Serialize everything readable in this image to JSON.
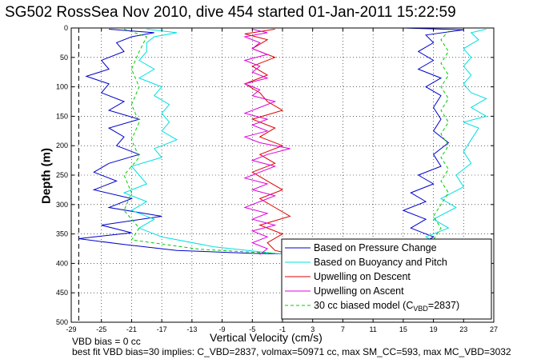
{
  "title": "SG502 RossSea Nov 2010, dive 454 started 01-Jan-2011 15:22:59",
  "chart_data": {
    "type": "line",
    "xlabel": "Vertical Velocity (cm/s)",
    "ylabel": "Depth (m)",
    "xlim": [
      -29,
      27
    ],
    "ylim": [
      0,
      500
    ],
    "y_reversed": true,
    "grid": true,
    "xticks": [
      -29,
      -25,
      -21,
      -17,
      -13,
      -9,
      -5,
      -1,
      3,
      7,
      11,
      15,
      19,
      23,
      27
    ],
    "yticks": [
      0,
      50,
      100,
      150,
      200,
      250,
      300,
      350,
      400,
      450,
      500
    ],
    "legend_location": "bottom-right",
    "vbd_bias_line_x": -28,
    "series": [
      {
        "name": "Based on Pressure Change",
        "color": "#0000cc",
        "descent": [
          [
            -24,
            2
          ],
          [
            -18,
            8
          ],
          [
            -21,
            15
          ],
          [
            -23,
            25
          ],
          [
            -22,
            40
          ],
          [
            -25,
            55
          ],
          [
            -24,
            70
          ],
          [
            -27,
            82
          ],
          [
            -24,
            95
          ],
          [
            -25,
            110
          ],
          [
            -22,
            125
          ],
          [
            -24,
            140
          ],
          [
            -20,
            155
          ],
          [
            -24,
            170
          ],
          [
            -22,
            185
          ],
          [
            -23,
            200
          ],
          [
            -20,
            215
          ],
          [
            -24,
            230
          ],
          [
            -26,
            245
          ],
          [
            -23,
            260
          ],
          [
            -26,
            275
          ],
          [
            -21,
            290
          ],
          [
            -24,
            305
          ],
          [
            -17,
            320
          ],
          [
            -25,
            335
          ],
          [
            -21,
            348
          ],
          [
            -28,
            358
          ],
          [
            -22,
            368
          ],
          [
            -15,
            378
          ],
          [
            -5,
            383
          ],
          [
            0,
            384
          ]
        ],
        "ascent": [
          [
            0,
            385
          ],
          [
            10,
            384
          ],
          [
            18,
            380
          ],
          [
            17,
            370
          ],
          [
            19,
            355
          ],
          [
            16,
            340
          ],
          [
            18,
            325
          ],
          [
            15,
            310
          ],
          [
            18,
            295
          ],
          [
            16,
            280
          ],
          [
            19,
            265
          ],
          [
            17,
            250
          ],
          [
            20,
            235
          ],
          [
            19,
            215
          ],
          [
            21,
            195
          ],
          [
            19,
            175
          ],
          [
            20,
            155
          ],
          [
            19,
            135
          ],
          [
            20,
            115
          ],
          [
            18,
            100
          ],
          [
            20,
            85
          ],
          [
            17,
            70
          ],
          [
            19,
            55
          ],
          [
            17,
            40
          ],
          [
            19,
            25
          ],
          [
            18,
            12
          ],
          [
            23,
            3
          ],
          [
            15,
            0
          ]
        ]
      },
      {
        "name": "Based on Buoyancy and Pitch",
        "color": "#00e0e0",
        "descent": [
          [
            -19,
            2
          ],
          [
            -15,
            8
          ],
          [
            -18,
            15
          ],
          [
            -19,
            25
          ],
          [
            -19,
            40
          ],
          [
            -20,
            55
          ],
          [
            -18,
            70
          ],
          [
            -20,
            85
          ],
          [
            -17,
            100
          ],
          [
            -18,
            115
          ],
          [
            -16,
            130
          ],
          [
            -17,
            145
          ],
          [
            -16,
            160
          ],
          [
            -17,
            175
          ],
          [
            -15,
            190
          ],
          [
            -18,
            205
          ],
          [
            -17,
            220
          ],
          [
            -21,
            235
          ],
          [
            -20,
            250
          ],
          [
            -19,
            265
          ],
          [
            -22,
            280
          ],
          [
            -19,
            295
          ],
          [
            -21,
            310
          ],
          [
            -18,
            325
          ],
          [
            -20,
            340
          ],
          [
            -17,
            355
          ],
          [
            -10,
            372
          ],
          [
            -2,
            383
          ],
          [
            0,
            385
          ]
        ],
        "ascent": [
          [
            0,
            385
          ],
          [
            12,
            384
          ],
          [
            19,
            380
          ],
          [
            20,
            370
          ],
          [
            18,
            355
          ],
          [
            21,
            340
          ],
          [
            19,
            325
          ],
          [
            22,
            305
          ],
          [
            20,
            290
          ],
          [
            23,
            270
          ],
          [
            22,
            250
          ],
          [
            24,
            230
          ],
          [
            23,
            210
          ],
          [
            24,
            190
          ],
          [
            25,
            170
          ],
          [
            23,
            160
          ],
          [
            26,
            150
          ],
          [
            24,
            135
          ],
          [
            26,
            120
          ],
          [
            24,
            110
          ],
          [
            23,
            95
          ],
          [
            24,
            80
          ],
          [
            23,
            65
          ],
          [
            24,
            50
          ],
          [
            23,
            35
          ],
          [
            25,
            20
          ],
          [
            24,
            8
          ],
          [
            26,
            2
          ]
        ]
      },
      {
        "name": "Upwelling on Descent",
        "color": "#e00000",
        "descent": [
          [
            -2,
            2
          ],
          [
            -6,
            10
          ],
          [
            -3,
            20
          ],
          [
            -5,
            35
          ],
          [
            -2,
            50
          ],
          [
            -5,
            65
          ],
          [
            -3,
            80
          ],
          [
            -6,
            95
          ],
          [
            -4,
            110
          ],
          [
            -3,
            125
          ],
          [
            -1,
            140
          ],
          [
            -5,
            155
          ],
          [
            -2,
            170
          ],
          [
            -4,
            185
          ],
          [
            -1,
            200
          ],
          [
            -4,
            215
          ],
          [
            -2,
            230
          ],
          [
            -5,
            245
          ],
          [
            -3,
            260
          ],
          [
            -1,
            275
          ],
          [
            -4,
            290
          ],
          [
            -2,
            305
          ],
          [
            0,
            320
          ],
          [
            -4,
            335
          ],
          [
            -1,
            350
          ],
          [
            -3,
            365
          ],
          [
            -2,
            378
          ],
          [
            0,
            384
          ],
          [
            14,
            384
          ]
        ]
      },
      {
        "name": "Upwelling on Ascent",
        "color": "#e000e0",
        "ascent": [
          [
            -4,
            385
          ],
          [
            -3,
            375
          ],
          [
            -5,
            365
          ],
          [
            -3,
            355
          ],
          [
            -5,
            345
          ],
          [
            -2,
            335
          ],
          [
            -5,
            325
          ],
          [
            -3,
            315
          ],
          [
            -6,
            305
          ],
          [
            -4,
            295
          ],
          [
            -2,
            285
          ],
          [
            -5,
            275
          ],
          [
            -3,
            265
          ],
          [
            -6,
            255
          ],
          [
            -4,
            245
          ],
          [
            -2,
            235
          ],
          [
            -5,
            225
          ],
          [
            -3,
            215
          ],
          [
            0,
            205
          ],
          [
            -4,
            195
          ],
          [
            -6,
            185
          ],
          [
            -3,
            175
          ],
          [
            -5,
            165
          ],
          [
            -3,
            155
          ],
          [
            -6,
            145
          ],
          [
            -4,
            135
          ],
          [
            -2,
            125
          ],
          [
            -5,
            115
          ],
          [
            -4,
            105
          ],
          [
            -6,
            95
          ],
          [
            -3,
            85
          ],
          [
            -5,
            75
          ],
          [
            -4,
            65
          ],
          [
            -6,
            55
          ],
          [
            -3,
            45
          ],
          [
            -5,
            35
          ],
          [
            -4,
            25
          ],
          [
            -6,
            15
          ],
          [
            -3,
            8
          ],
          [
            -5,
            2
          ]
        ]
      },
      {
        "name": "30 cc biased model (C_VBD=2837)",
        "color": "#00cc00",
        "descent": [
          [
            -22,
            2
          ],
          [
            -19,
            15
          ],
          [
            -20,
            40
          ],
          [
            -21,
            70
          ],
          [
            -20,
            100
          ],
          [
            -21,
            130
          ],
          [
            -20,
            160
          ],
          [
            -21,
            190
          ],
          [
            -20,
            220
          ],
          [
            -22,
            250
          ],
          [
            -21,
            280
          ],
          [
            -22,
            310
          ],
          [
            -20,
            340
          ],
          [
            -21,
            360
          ],
          [
            -12,
            376
          ],
          [
            -2,
            383
          ]
        ],
        "ascent": [
          [
            2,
            385
          ],
          [
            15,
            383
          ],
          [
            18,
            378
          ],
          [
            19,
            360
          ],
          [
            20,
            340
          ],
          [
            19,
            320
          ],
          [
            20,
            300
          ],
          [
            21,
            280
          ],
          [
            20,
            260
          ],
          [
            21,
            240
          ],
          [
            20,
            220
          ],
          [
            21,
            200
          ],
          [
            20,
            180
          ],
          [
            21,
            160
          ],
          [
            20,
            140
          ],
          [
            21,
            120
          ],
          [
            20,
            100
          ],
          [
            21,
            80
          ],
          [
            20,
            60
          ],
          [
            21,
            40
          ],
          [
            20,
            20
          ],
          [
            21,
            5
          ]
        ]
      }
    ]
  },
  "legend": {
    "item1": "Based on Pressure Change",
    "item2": "Based on Buoyancy and Pitch",
    "item3": "Upwelling on Descent",
    "item4": "Upwelling on Ascent",
    "item5_prefix": "30 cc biased model (C",
    "item5_sub": "VBD",
    "item5_suffix": "=2837)"
  },
  "notes": {
    "line1": "VBD bias = 0 cc",
    "line2": "best fit VBD bias=30 implies: C_VBD=2837, volmax=50971 cc, max SM_CC=593, max MC_VBD=3032"
  }
}
